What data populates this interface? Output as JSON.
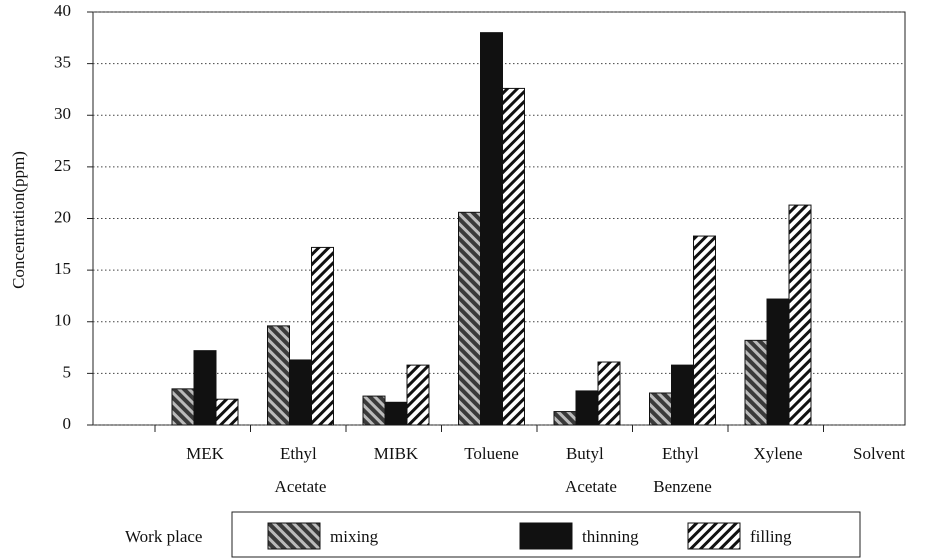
{
  "chart_data": {
    "type": "bar",
    "y_label": "Concentration(ppm)",
    "x_label": "Solvent",
    "legend_title": "Work place",
    "categories": [
      "MEK",
      "Ethyl Acetate",
      "MIBK",
      "Toluene",
      "Butyl Acetate",
      "Ethyl Benzene",
      "Xylene"
    ],
    "series": [
      {
        "name": "mixing",
        "color": "#3a3a3a",
        "values": [
          3.5,
          9.6,
          2.8,
          20.6,
          1.3,
          3.1,
          8.2
        ]
      },
      {
        "name": "thinning",
        "color": "#111111",
        "values": [
          7.2,
          6.3,
          2.2,
          38,
          3.3,
          5.8,
          12.2
        ]
      },
      {
        "name": "filling",
        "color": "#ffffff",
        "values": [
          2.5,
          17.2,
          5.8,
          32.6,
          6.1,
          18.3,
          21.3
        ]
      }
    ],
    "ylim": [
      0,
      40
    ],
    "yticks": [
      0,
      5,
      10,
      15,
      20,
      25,
      30,
      35,
      40
    ],
    "grid": true
  }
}
